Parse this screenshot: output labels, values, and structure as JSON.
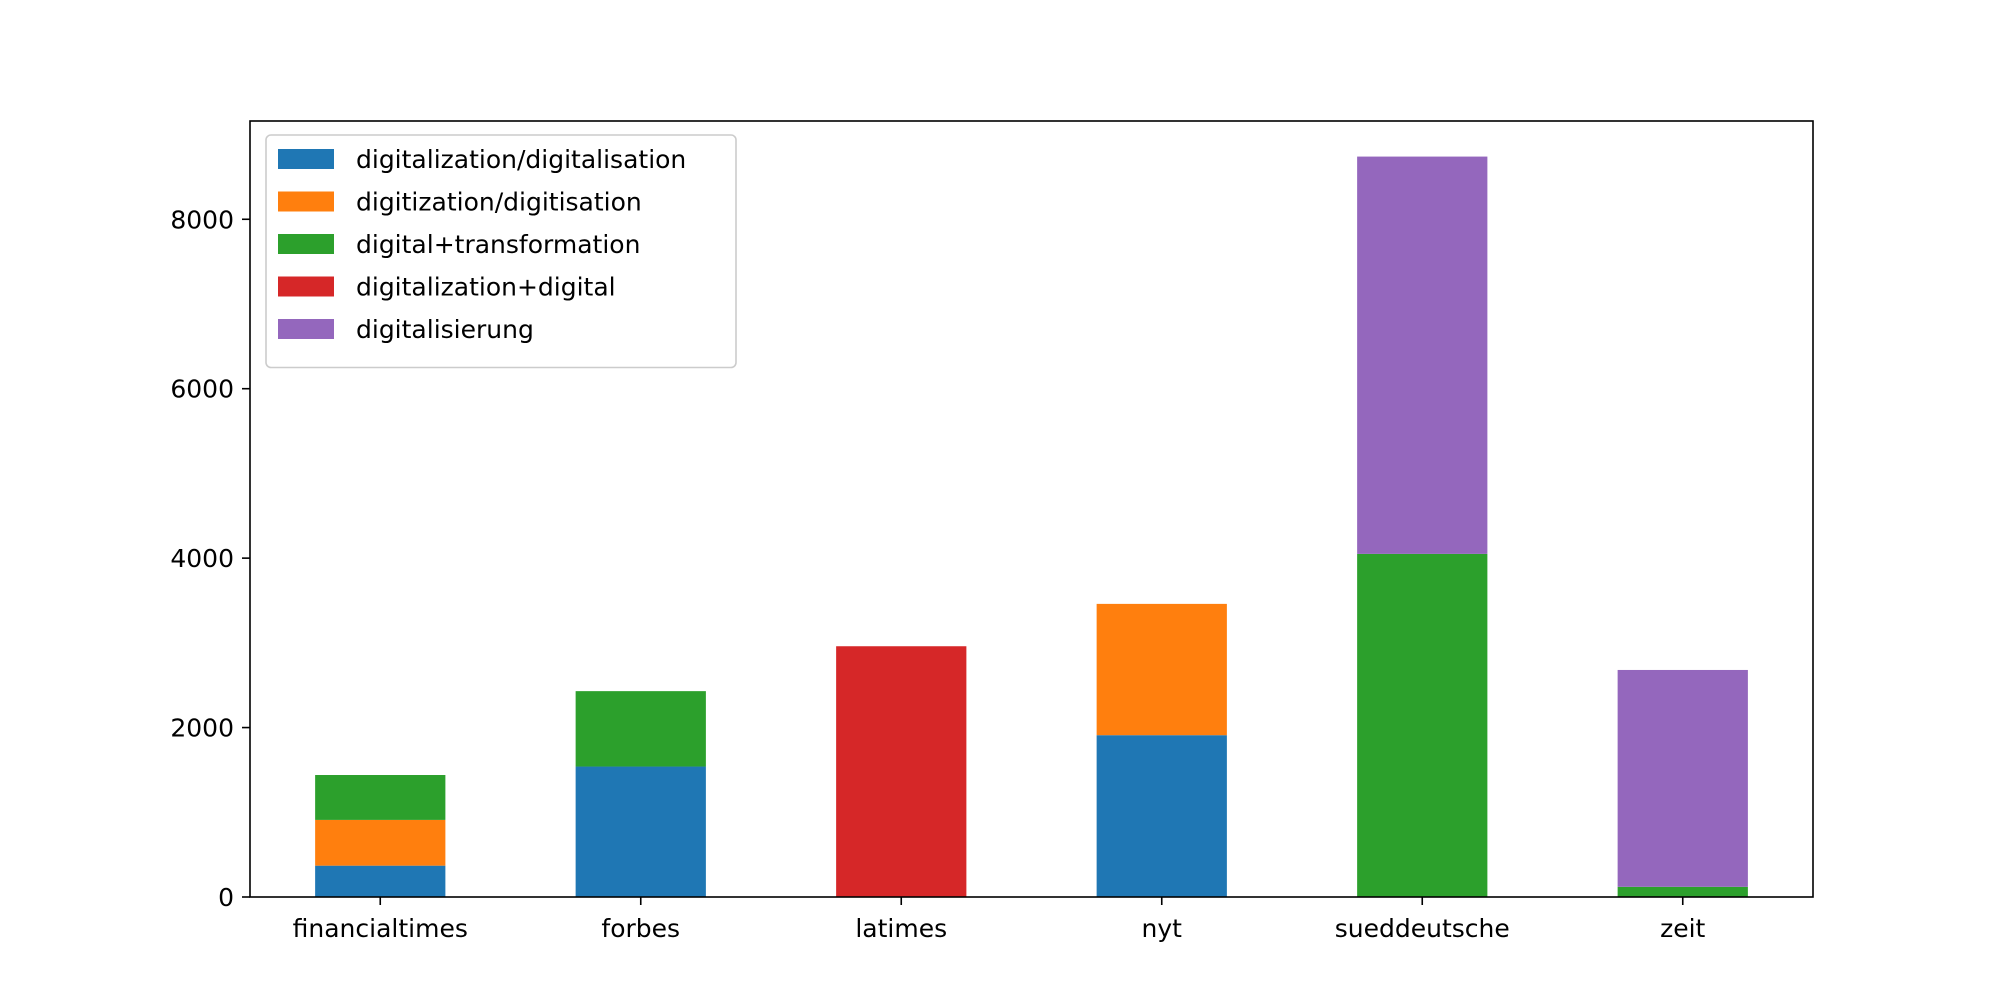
{
  "chart_data": {
    "type": "bar",
    "stacked": true,
    "title": "",
    "xlabel": "",
    "ylabel": "",
    "categories": [
      "financialtimes",
      "forbes",
      "latimes",
      "nyt",
      "sueddeutsche",
      "zeit"
    ],
    "series": [
      {
        "name": "digitalization/digitalisation",
        "color": "#1f77b4",
        "values": [
          370,
          1540,
          0,
          1910,
          0,
          0
        ]
      },
      {
        "name": "digitization/digitisation",
        "color": "#ff7f0e",
        "values": [
          540,
          0,
          0,
          1550,
          0,
          0
        ]
      },
      {
        "name": "digital+transformation",
        "color": "#2ca02c",
        "values": [
          530,
          890,
          0,
          0,
          4050,
          120
        ]
      },
      {
        "name": "digitalization+digital",
        "color": "#d62728",
        "values": [
          0,
          0,
          2960,
          0,
          0,
          0
        ]
      },
      {
        "name": "digitalisierung",
        "color": "#9467bd",
        "values": [
          0,
          0,
          0,
          0,
          4690,
          2560
        ]
      }
    ],
    "yticks": [
      0,
      2000,
      4000,
      6000,
      8000
    ],
    "ylim": [
      0,
      9160
    ],
    "grid": false,
    "legend_position": "top-left"
  }
}
